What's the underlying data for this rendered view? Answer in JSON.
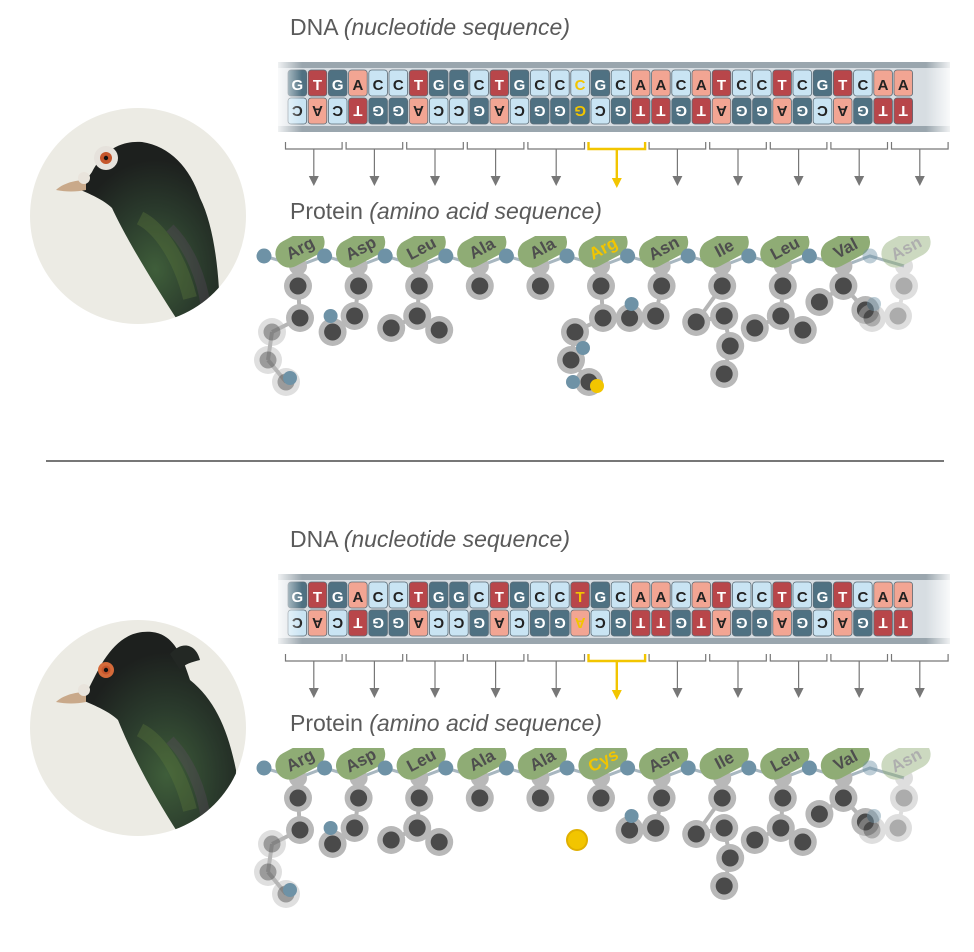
{
  "panels": [
    {
      "id": "top",
      "dna_label": "DNA",
      "dna_label_italic": "(nucleotide sequence)",
      "protein_label": "Protein",
      "protein_label_italic": "(amino acid sequence)",
      "top_strand": [
        "G",
        "T",
        "G",
        "A",
        "C",
        "C",
        "T",
        "G",
        "G",
        "C",
        "T",
        "G",
        "C",
        "C",
        "C",
        "G",
        "C",
        "A",
        "A",
        "C",
        "A",
        "T",
        "C",
        "C",
        "T",
        "C",
        "G",
        "T",
        "C",
        "A",
        "A"
      ],
      "bottom_strand": [
        "C",
        "A",
        "C",
        "T",
        "G",
        "G",
        "A",
        "C",
        "C",
        "G",
        "A",
        "C",
        "G",
        "G",
        "G",
        "C",
        "G",
        "T",
        "T",
        "G",
        "T",
        "A",
        "G",
        "G",
        "A",
        "G",
        "C",
        "A",
        "G",
        "T",
        "T"
      ],
      "highlight_index": 14,
      "amino_acids": [
        "Arg",
        "Asp",
        "Leu",
        "Ala",
        "Ala",
        "Arg",
        "Asn",
        "Ile",
        "Leu",
        "Val",
        "Asn"
      ],
      "highlight_amino": 5,
      "bird": "pigeon-plain-head"
    },
    {
      "id": "bottom",
      "dna_label": "DNA",
      "dna_label_italic": "(nucleotide sequence)",
      "protein_label": "Protein",
      "protein_label_italic": "(amino acid sequence)",
      "top_strand": [
        "G",
        "T",
        "G",
        "A",
        "C",
        "C",
        "T",
        "G",
        "G",
        "C",
        "T",
        "G",
        "C",
        "C",
        "T",
        "G",
        "C",
        "A",
        "A",
        "C",
        "A",
        "T",
        "C",
        "C",
        "T",
        "C",
        "G",
        "T",
        "C",
        "A",
        "A"
      ],
      "bottom_strand": [
        "C",
        "A",
        "C",
        "T",
        "G",
        "G",
        "A",
        "C",
        "C",
        "G",
        "A",
        "C",
        "G",
        "G",
        "A",
        "C",
        "G",
        "T",
        "T",
        "G",
        "T",
        "A",
        "G",
        "G",
        "A",
        "G",
        "C",
        "A",
        "G",
        "T",
        "T"
      ],
      "highlight_index": 14,
      "amino_acids": [
        "Arg",
        "Asp",
        "Leu",
        "Ala",
        "Ala",
        "Cys",
        "Asn",
        "Ile",
        "Leu",
        "Val",
        "Asn"
      ],
      "highlight_amino": 5,
      "bird": "pigeon-head-crest"
    }
  ],
  "colors": {
    "base_A": "#f2a593",
    "base_T": "#b8464a",
    "base_C": "#c9e4f3",
    "base_G": "#4f7182",
    "highlight": "#f2c500",
    "amino_green": "#8fac75",
    "backbone_dot": "#6e92a6",
    "atom_dark": "#4a4a4a",
    "atom_ring": "#b8b8b8"
  }
}
